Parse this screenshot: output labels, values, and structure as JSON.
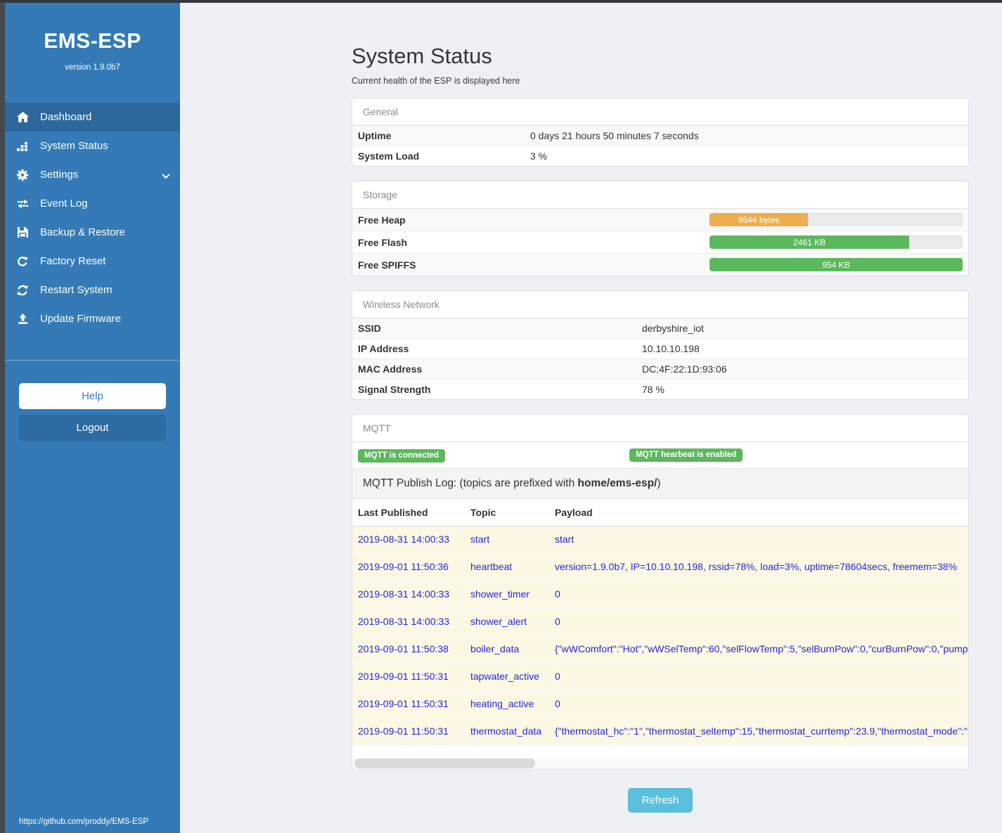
{
  "colors": {
    "sidebar": "#337ab7",
    "sidebar_active": "#2c689c",
    "green": "#5cb85c",
    "orange": "#f0ad4e",
    "info_blue": "#5bc0de",
    "log_text": "#2525dd",
    "log_row_bg": "#fcf8e3"
  },
  "sidebar": {
    "brand": "EMS-ESP",
    "version": "version 1.9.0b7",
    "items": [
      {
        "label": "Dashboard",
        "icon": "home-icon",
        "active": true
      },
      {
        "label": "System Status",
        "icon": "chart-icon"
      },
      {
        "label": "Settings",
        "icon": "gear-icon",
        "chevron": true
      },
      {
        "label": "Event Log",
        "icon": "exchange-icon"
      },
      {
        "label": "Backup & Restore",
        "icon": "save-icon"
      },
      {
        "label": "Factory Reset",
        "icon": "redo-icon"
      },
      {
        "label": "Restart System",
        "icon": "sync-icon"
      },
      {
        "label": "Update Firmware",
        "icon": "upload-icon"
      }
    ],
    "help_label": "Help",
    "logout_label": "Logout",
    "footer_url": "https://github.com/proddy/EMS-ESP"
  },
  "header": {
    "title": "System Status",
    "subtitle": "Current health of the ESP is displayed here"
  },
  "panels": {
    "general": {
      "title": "General",
      "rows": [
        {
          "label": "Uptime",
          "value": "0 days 21 hours 50 minutes 7 seconds"
        },
        {
          "label": "System Load",
          "value": "3 %"
        }
      ]
    },
    "storage": {
      "title": "Storage",
      "rows": [
        {
          "label": "Free Heap",
          "bar_label": "9544 bytes",
          "percent": 39,
          "color": "#f0ad4e"
        },
        {
          "label": "Free Flash",
          "bar_label": "2461 KB",
          "percent": 79,
          "color": "#5cb85c"
        },
        {
          "label": "Free SPIFFS",
          "bar_label": "954 KB",
          "percent": 100,
          "color": "#5cb85c"
        }
      ]
    },
    "wireless": {
      "title": "Wireless Network",
      "rows": [
        {
          "label": "SSID",
          "value": "derbyshire_iot"
        },
        {
          "label": "IP Address",
          "value": "10.10.10.198"
        },
        {
          "label": "MAC Address",
          "value": "DC:4F:22:1D:93:06"
        },
        {
          "label": "Signal Strength",
          "value": "78 %"
        }
      ]
    },
    "mqtt": {
      "title": "MQTT",
      "badges": [
        "MQTT is connected",
        "MQTT hearbeat is enabled"
      ],
      "publish_log": {
        "prefix": "MQTT Publish Log: (topics are prefixed with ",
        "bold": "home/ems-esp/",
        "suffix": ")"
      },
      "table": {
        "headers": [
          "Last Published",
          "Topic",
          "Payload"
        ],
        "rows": [
          {
            "published": "2019-08-31 14:00:33",
            "topic": "start",
            "payload": "start"
          },
          {
            "published": "2019-09-01 11:50:36",
            "topic": "heartbeat",
            "payload": "version=1.9.0b7, IP=10.10.10.198, rssid=78%, load=3%, uptime=78604secs, freemem=38%"
          },
          {
            "published": "2019-08-31 14:00:33",
            "topic": "shower_timer",
            "payload": "0"
          },
          {
            "published": "2019-08-31 14:00:33",
            "topic": "shower_alert",
            "payload": "0"
          },
          {
            "published": "2019-09-01 11:50:38",
            "topic": "boiler_data",
            "payload": "{\"wWComfort\":\"Hot\",\"wWSelTemp\":60,\"selFlowTemp\":5,\"selBurnPow\":0,\"curBurnPow\":0,\"pump"
          },
          {
            "published": "2019-09-01 11:50:31",
            "topic": "tapwater_active",
            "payload": "0"
          },
          {
            "published": "2019-09-01 11:50:31",
            "topic": "heating_active",
            "payload": "0"
          },
          {
            "published": "2019-09-01 11:50:31",
            "topic": "thermostat_data",
            "payload": "{\"thermostat_hc\":\"1\",\"thermostat_seltemp\":15,\"thermostat_currtemp\":23.9,\"thermostat_mode\":\""
          }
        ]
      }
    }
  },
  "refresh_label": "Refresh"
}
